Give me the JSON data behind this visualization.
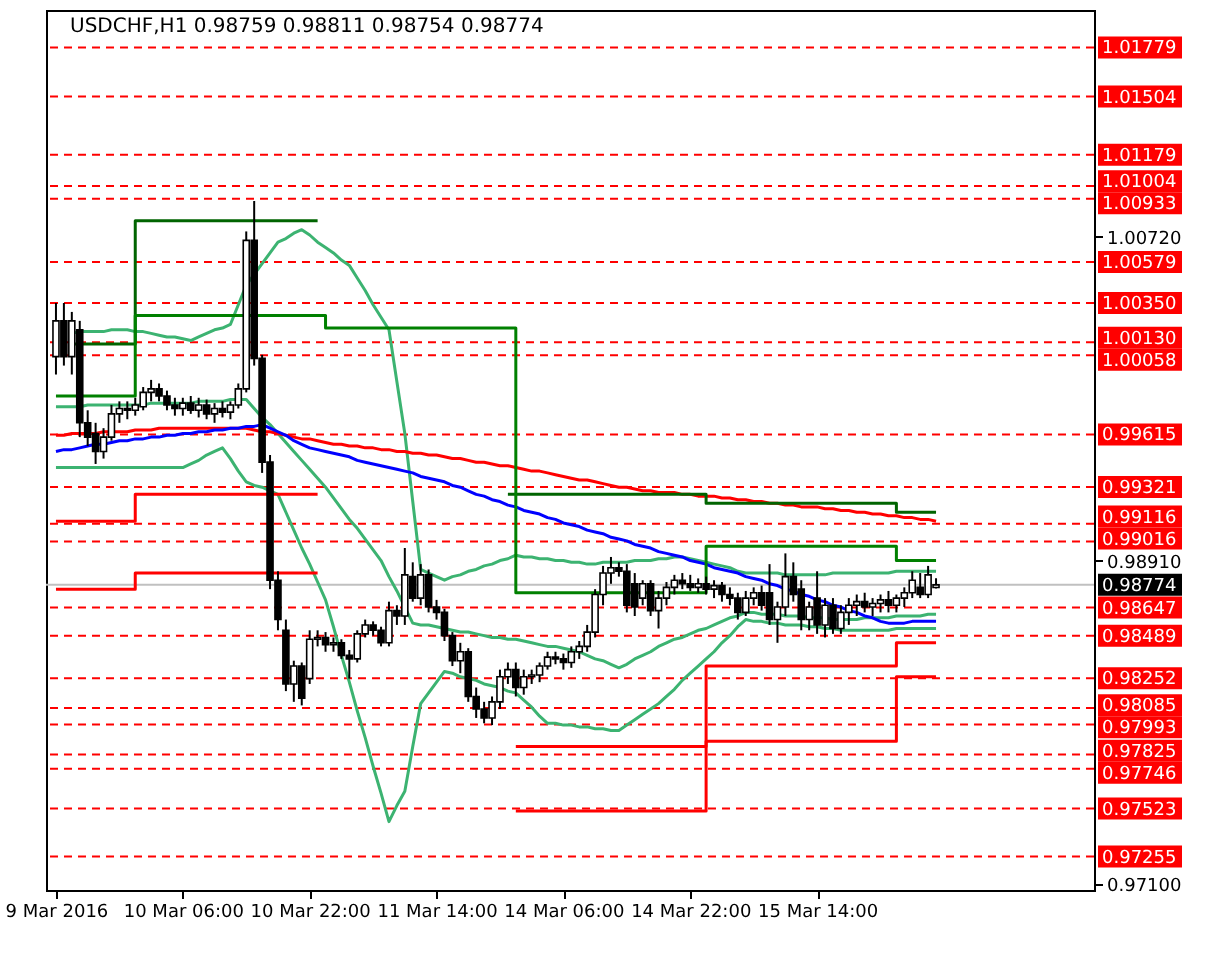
{
  "chart_data": {
    "type": "candlestick",
    "title": "USDCHF,H1  0.98759 0.98811 0.98754 0.98774",
    "categories": [
      "9 Mar 2016",
      null,
      null,
      null,
      null,
      null,
      null,
      null,
      null,
      null,
      null,
      null,
      null,
      null,
      null,
      null,
      "10 Mar 06:00",
      null,
      null,
      null,
      null,
      null,
      null,
      null,
      null,
      null,
      null,
      null,
      null,
      null,
      null,
      null,
      "10 Mar 22:00",
      null,
      null,
      null,
      null,
      null,
      null,
      null,
      null,
      null,
      null,
      null,
      null,
      null,
      null,
      null,
      "11 Mar 14:00",
      null,
      null,
      null,
      null,
      null,
      null,
      null,
      null,
      null,
      null,
      null,
      null,
      null,
      null,
      null,
      "14 Mar 06:00",
      null,
      null,
      null,
      null,
      null,
      null,
      null,
      null,
      null,
      null,
      null,
      null,
      null,
      null,
      null,
      "14 Mar 22:00",
      null,
      null,
      null,
      null,
      null,
      null,
      null,
      null,
      null,
      null,
      null,
      null,
      null,
      null,
      null,
      "15 Mar 14:00",
      null,
      null,
      null,
      null,
      null,
      null,
      null,
      null,
      null,
      null,
      null,
      null,
      null,
      null,
      null
    ],
    "ohlc": [
      [
        1.0005,
        1.0035,
        0.9995,
        1.0025
      ],
      [
        1.0025,
        1.0035,
        1.0,
        1.0005
      ],
      [
        1.0005,
        1.003,
        0.9995,
        1.0025
      ],
      [
        1.002,
        1.0025,
        0.996,
        0.9968
      ],
      [
        0.9968,
        0.9975,
        0.9955,
        0.996
      ],
      [
        0.9962,
        0.9968,
        0.9945,
        0.9952
      ],
      [
        0.9952,
        0.9965,
        0.9948,
        0.996
      ],
      [
        0.996,
        0.9978,
        0.9958,
        0.9973
      ],
      [
        0.9973,
        0.998,
        0.9968,
        0.9976
      ],
      [
        0.9976,
        0.998,
        0.997,
        0.9975
      ],
      [
        0.9975,
        0.9982,
        0.9972,
        0.9978
      ],
      [
        0.9977,
        0.9988,
        0.9975,
        0.9985
      ],
      [
        0.9985,
        0.9992,
        0.998,
        0.9987
      ],
      [
        0.9987,
        0.999,
        0.998,
        0.9983
      ],
      [
        0.9983,
        0.9986,
        0.9975,
        0.9978
      ],
      [
        0.9978,
        0.9982,
        0.9972,
        0.9976
      ],
      [
        0.9976,
        0.9982,
        0.9972,
        0.9979
      ],
      [
        0.9979,
        0.9983,
        0.9973,
        0.9975
      ],
      [
        0.9975,
        0.9982,
        0.9971,
        0.9978
      ],
      [
        0.9978,
        0.9981,
        0.997,
        0.9973
      ],
      [
        0.9973,
        0.9979,
        0.9968,
        0.9976
      ],
      [
        0.9976,
        0.998,
        0.9971,
        0.9974
      ],
      [
        0.9974,
        0.998,
        0.997,
        0.9978
      ],
      [
        0.9978,
        0.999,
        0.9976,
        0.9987
      ],
      [
        0.9987,
        1.0075,
        0.9985,
        1.007
      ],
      [
        1.007,
        1.0092,
        1.0,
        1.0004
      ],
      [
        1.0004,
        1.0006,
        0.994,
        0.9946
      ],
      [
        0.9946,
        0.995,
        0.9875,
        0.988
      ],
      [
        0.988,
        0.9885,
        0.9852,
        0.9858
      ],
      [
        0.9852,
        0.9858,
        0.9818,
        0.9822
      ],
      [
        0.9822,
        0.9835,
        0.9812,
        0.9832
      ],
      [
        0.9832,
        0.9834,
        0.981,
        0.9814
      ],
      [
        0.9825,
        0.9852,
        0.9822,
        0.9847
      ],
      [
        0.9847,
        0.9852,
        0.9843,
        0.9848
      ],
      [
        0.9848,
        0.9851,
        0.984,
        0.9844
      ],
      [
        0.9844,
        0.9848,
        0.984,
        0.9845
      ],
      [
        0.9845,
        0.9847,
        0.9836,
        0.9838
      ],
      [
        0.9838,
        0.9841,
        0.9825,
        0.9836
      ],
      [
        0.9836,
        0.9852,
        0.9834,
        0.985
      ],
      [
        0.985,
        0.9858,
        0.9848,
        0.9855
      ],
      [
        0.9855,
        0.9857,
        0.9849,
        0.9852
      ],
      [
        0.9852,
        0.9854,
        0.9843,
        0.9845
      ],
      [
        0.9845,
        0.9868,
        0.9843,
        0.9863
      ],
      [
        0.9863,
        0.9866,
        0.9855,
        0.986
      ],
      [
        0.986,
        0.9898,
        0.9855,
        0.9883
      ],
      [
        0.9882,
        0.989,
        0.9868,
        0.987
      ],
      [
        0.987,
        0.9889,
        0.9866,
        0.9883
      ],
      [
        0.9883,
        0.9886,
        0.9862,
        0.9865
      ],
      [
        0.9865,
        0.9869,
        0.9858,
        0.9862
      ],
      [
        0.9862,
        0.9864,
        0.9846,
        0.9849
      ],
      [
        0.9849,
        0.9851,
        0.9832,
        0.9835
      ],
      [
        0.9835,
        0.9845,
        0.9828,
        0.984
      ],
      [
        0.984,
        0.9842,
        0.9812,
        0.9815
      ],
      [
        0.9815,
        0.982,
        0.9803,
        0.9808
      ],
      [
        0.9808,
        0.9812,
        0.98,
        0.9803
      ],
      [
        0.9803,
        0.9815,
        0.9799,
        0.9812
      ],
      [
        0.9812,
        0.983,
        0.9808,
        0.9826
      ],
      [
        0.9826,
        0.9834,
        0.9822,
        0.983
      ],
      [
        0.983,
        0.9834,
        0.9815,
        0.982
      ],
      [
        0.982,
        0.983,
        0.9816,
        0.9826
      ],
      [
        0.9826,
        0.983,
        0.9822,
        0.9827
      ],
      [
        0.9827,
        0.9834,
        0.9823,
        0.9832
      ],
      [
        0.9832,
        0.984,
        0.983,
        0.9837
      ],
      [
        0.9837,
        0.984,
        0.9833,
        0.9836
      ],
      [
        0.9836,
        0.9839,
        0.983,
        0.9834
      ],
      [
        0.9834,
        0.9843,
        0.9831,
        0.984
      ],
      [
        0.984,
        0.9846,
        0.9836,
        0.9843
      ],
      [
        0.9843,
        0.9855,
        0.984,
        0.9851
      ],
      [
        0.9851,
        0.9875,
        0.9848,
        0.9872
      ],
      [
        0.9872,
        0.9888,
        0.9866,
        0.9884
      ],
      [
        0.9884,
        0.9893,
        0.9878,
        0.9887
      ],
      [
        0.9887,
        0.989,
        0.9882,
        0.9885
      ],
      [
        0.9885,
        0.9889,
        0.9862,
        0.9866
      ],
      [
        0.9878,
        0.9884,
        0.986,
        0.9865
      ],
      [
        0.987,
        0.988,
        0.9866,
        0.9878
      ],
      [
        0.9878,
        0.988,
        0.986,
        0.9863
      ],
      [
        0.9863,
        0.9874,
        0.9853,
        0.987
      ],
      [
        0.987,
        0.9879,
        0.9866,
        0.9876
      ],
      [
        0.9876,
        0.9883,
        0.9872,
        0.988
      ],
      [
        0.988,
        0.9884,
        0.9875,
        0.9878
      ],
      [
        0.9878,
        0.9883,
        0.9874,
        0.9876
      ],
      [
        0.9876,
        0.9881,
        0.9873,
        0.9878
      ],
      [
        0.9878,
        0.9882,
        0.9872,
        0.9875
      ],
      [
        0.9875,
        0.988,
        0.987,
        0.9877
      ],
      [
        0.9877,
        0.9879,
        0.9868,
        0.9872
      ],
      [
        0.9872,
        0.9876,
        0.9866,
        0.987
      ],
      [
        0.987,
        0.9873,
        0.9858,
        0.9862
      ],
      [
        0.9862,
        0.9874,
        0.986,
        0.987
      ],
      [
        0.987,
        0.9876,
        0.9866,
        0.9873
      ],
      [
        0.9873,
        0.9877,
        0.9863,
        0.9866
      ],
      [
        0.9873,
        0.9889,
        0.9855,
        0.9858
      ],
      [
        0.9858,
        0.9868,
        0.9845,
        0.9865
      ],
      [
        0.9865,
        0.9895,
        0.986,
        0.9882
      ],
      [
        0.9882,
        0.989,
        0.9868,
        0.9872
      ],
      [
        0.9875,
        0.988,
        0.9852,
        0.9858
      ],
      [
        0.9858,
        0.9868,
        0.9852,
        0.9865
      ],
      [
        0.987,
        0.9885,
        0.985,
        0.9855
      ],
      [
        0.9855,
        0.987,
        0.9848,
        0.9866
      ],
      [
        0.9866,
        0.987,
        0.985,
        0.9853
      ],
      [
        0.9853,
        0.9866,
        0.985,
        0.9862
      ],
      [
        0.9862,
        0.987,
        0.9855,
        0.9866
      ],
      [
        0.9866,
        0.9872,
        0.986,
        0.9868
      ],
      [
        0.9868,
        0.9873,
        0.9862,
        0.9865
      ],
      [
        0.9865,
        0.987,
        0.986,
        0.9867
      ],
      [
        0.9867,
        0.9872,
        0.9862,
        0.9869
      ],
      [
        0.9869,
        0.9874,
        0.9862,
        0.9866
      ],
      [
        0.9866,
        0.9872,
        0.9862,
        0.987
      ],
      [
        0.987,
        0.9876,
        0.9865,
        0.9873
      ],
      [
        0.9873,
        0.9885,
        0.987,
        0.988
      ],
      [
        0.9876,
        0.9884,
        0.987,
        0.9872
      ],
      [
        0.9872,
        0.9888,
        0.987,
        0.9883
      ],
      [
        0.98759,
        0.98811,
        0.98754,
        0.98774
      ]
    ],
    "series": [
      {
        "type": "line",
        "color": "#3cb371",
        "values": [
          null,
          null,
          1.0018,
          1.0019,
          1.0019,
          1.0019,
          1.0019,
          1.002,
          1.002,
          1.002,
          1.0019,
          1.0019,
          1.0018,
          1.0017,
          1.0016,
          1.0016,
          1.0015,
          1.0014,
          1.0016,
          1.0018,
          1.002,
          1.0021,
          1.0023,
          1.0034,
          1.0045,
          1.0051,
          1.0057,
          1.0063,
          1.0069,
          1.0071,
          1.0074,
          1.0076,
          1.0073,
          1.0069,
          1.0066,
          1.0063,
          1.0059,
          1.0056,
          1.0049,
          1.0042,
          1.0034,
          1.0027,
          1.002,
          0.9991,
          0.9962,
          0.9924,
          0.9886,
          0.9884,
          0.9882,
          0.988,
          0.9882,
          0.9883,
          0.9885,
          0.9886,
          0.9888,
          0.9889,
          0.9891,
          0.9892,
          0.9894,
          0.9893,
          0.9893,
          0.9892,
          0.9892,
          0.9891,
          0.9891,
          0.989,
          0.989,
          0.9889,
          0.9889,
          0.989,
          0.989,
          0.989,
          0.989,
          0.9891,
          0.9891,
          0.9891,
          0.9892,
          0.9892,
          0.9893,
          0.9893,
          0.9892,
          0.9891,
          0.989,
          0.9889,
          0.9888,
          0.9887,
          0.9885,
          0.9884,
          0.9884,
          0.9884,
          0.9884,
          0.9884,
          0.9883,
          0.9883,
          0.9883,
          0.9883,
          0.9883,
          0.9883,
          0.9884,
          0.9884,
          0.9884,
          0.9884,
          0.9884,
          0.9884,
          0.9884,
          0.9884,
          0.9885,
          0.9885,
          0.9885,
          0.9885,
          0.9885,
          0.9885
        ]
      },
      {
        "type": "line",
        "color": "#3cb371",
        "values": [
          0.9977,
          0.9977,
          0.9977,
          0.9977,
          0.9978,
          0.9978,
          0.9978,
          0.9978,
          0.9978,
          0.9978,
          0.9978,
          0.9978,
          0.9979,
          0.9979,
          0.9979,
          0.9979,
          0.9979,
          0.9979,
          0.998,
          0.998,
          0.998,
          0.998,
          0.9981,
          0.9981,
          0.9981,
          0.9976,
          0.9971,
          0.9967,
          0.9962,
          0.9957,
          0.9952,
          0.9947,
          0.9942,
          0.9937,
          0.9932,
          0.9926,
          0.992,
          0.9914,
          0.9909,
          0.9903,
          0.9897,
          0.9891,
          0.9882,
          0.9874,
          0.9865,
          0.9856,
          0.9855,
          0.9855,
          0.9854,
          0.9853,
          0.9852,
          0.9851,
          0.9851,
          0.985,
          0.9849,
          0.9848,
          0.9848,
          0.9847,
          0.9847,
          0.9846,
          0.9845,
          0.9844,
          0.9843,
          0.9843,
          0.9842,
          0.9841,
          0.984,
          0.9838,
          0.9836,
          0.9835,
          0.9833,
          0.9831,
          0.9833,
          0.9836,
          0.9838,
          0.984,
          0.9843,
          0.9845,
          0.9847,
          0.9848,
          0.985,
          0.9852,
          0.9853,
          0.9855,
          0.9857,
          0.9859,
          0.986,
          0.9862,
          0.9862,
          0.9861,
          0.9861,
          0.9861,
          0.986,
          0.986,
          0.986,
          0.9859,
          0.9859,
          0.9859,
          0.9858,
          0.9858,
          0.9858,
          0.9858,
          0.9859,
          0.9859,
          0.9859,
          0.9859,
          0.986,
          0.986,
          0.986,
          0.986,
          0.9861,
          0.9861
        ]
      },
      {
        "type": "line",
        "color": "#3cb371",
        "values": [
          0.9943,
          0.9943,
          0.9943,
          0.9943,
          0.9943,
          0.9943,
          0.9943,
          0.9943,
          0.9943,
          0.9943,
          0.9943,
          0.9943,
          0.9943,
          0.9943,
          0.9943,
          0.9943,
          0.9943,
          0.9945,
          0.9947,
          0.995,
          0.9952,
          0.9954,
          0.9948,
          0.9941,
          0.9935,
          0.9933,
          0.9932,
          0.993,
          0.9928,
          0.9918,
          0.9908,
          0.9898,
          0.9889,
          0.9879,
          0.9869,
          0.9854,
          0.9838,
          0.9823,
          0.9807,
          0.9792,
          0.9776,
          0.9761,
          0.9745,
          0.9754,
          0.9762,
          0.9787,
          0.9811,
          0.9817,
          0.9823,
          0.9829,
          0.9828,
          0.9826,
          0.9825,
          0.9824,
          0.9822,
          0.9821,
          0.982,
          0.9818,
          0.9817,
          0.9813,
          0.9809,
          0.9804,
          0.98,
          0.98,
          0.9799,
          0.9799,
          0.9798,
          0.9798,
          0.9797,
          0.9797,
          0.9796,
          0.9796,
          0.9799,
          0.9802,
          0.9805,
          0.9808,
          0.9811,
          0.9815,
          0.9819,
          0.9824,
          0.9828,
          0.9832,
          0.9836,
          0.984,
          0.9845,
          0.9849,
          0.9854,
          0.9858,
          0.9857,
          0.9857,
          0.9856,
          0.9856,
          0.9855,
          0.9855,
          0.9855,
          0.9854,
          0.9854,
          0.9853,
          0.9853,
          0.9852,
          0.9852,
          0.9852,
          0.9852,
          0.9852,
          0.9852,
          0.9852,
          0.9853,
          0.9853,
          0.9853,
          0.9853,
          0.9853,
          0.9853
        ]
      },
      {
        "type": "line",
        "color": "#ff0000",
        "values": [
          0.9961,
          0.9961,
          0.9962,
          0.9962,
          0.9962,
          0.9962,
          0.9963,
          0.9963,
          0.9963,
          0.9963,
          0.9964,
          0.9964,
          0.9964,
          0.9965,
          0.9965,
          0.9965,
          0.9965,
          0.9965,
          0.9965,
          0.9965,
          0.9965,
          0.9965,
          0.9965,
          0.9965,
          0.9965,
          0.9964,
          0.9963,
          0.9963,
          0.9962,
          0.9961,
          0.996,
          0.9959,
          0.9959,
          0.9958,
          0.9957,
          0.9956,
          0.9956,
          0.9955,
          0.9955,
          0.9954,
          0.9954,
          0.9953,
          0.9953,
          0.9952,
          0.9952,
          0.9951,
          0.9951,
          0.995,
          0.995,
          0.9949,
          0.9948,
          0.9948,
          0.9947,
          0.9946,
          0.9946,
          0.9945,
          0.9944,
          0.9944,
          0.9943,
          0.9942,
          0.9941,
          0.9941,
          0.994,
          0.9939,
          0.9938,
          0.9937,
          0.9936,
          0.9936,
          0.9935,
          0.9934,
          0.9933,
          0.9932,
          0.9932,
          0.9931,
          0.993,
          0.993,
          0.9929,
          0.9929,
          0.9929,
          0.9928,
          0.9928,
          0.9927,
          0.9927,
          0.9927,
          0.9926,
          0.9926,
          0.9925,
          0.9925,
          0.9924,
          0.9924,
          0.9923,
          0.9923,
          0.9922,
          0.9922,
          0.9921,
          0.9921,
          0.9921,
          0.992,
          0.992,
          0.9919,
          0.9919,
          0.9918,
          0.9918,
          0.9917,
          0.9917,
          0.9916,
          0.9916,
          0.9915,
          0.9915,
          0.9914,
          0.9914,
          0.9913
        ]
      },
      {
        "type": "line",
        "color": "#0000ff",
        "values": [
          0.9952,
          0.9953,
          0.9953,
          0.9954,
          0.9955,
          0.9956,
          0.9956,
          0.9957,
          0.9958,
          0.9958,
          0.9959,
          0.9959,
          0.996,
          0.996,
          0.9961,
          0.9961,
          0.9962,
          0.9962,
          0.9963,
          0.9963,
          0.9964,
          0.9964,
          0.9965,
          0.9965,
          0.9966,
          0.9966,
          0.9967,
          0.9965,
          0.9963,
          0.9961,
          0.9958,
          0.9956,
          0.9954,
          0.9953,
          0.9952,
          0.9951,
          0.995,
          0.9949,
          0.9947,
          0.9946,
          0.9945,
          0.9944,
          0.9943,
          0.9942,
          0.9941,
          0.994,
          0.9938,
          0.9937,
          0.9936,
          0.9935,
          0.9933,
          0.9932,
          0.993,
          0.9928,
          0.9927,
          0.9925,
          0.9924,
          0.9922,
          0.9921,
          0.9919,
          0.9918,
          0.9917,
          0.9915,
          0.9914,
          0.9912,
          0.9911,
          0.991,
          0.9908,
          0.9907,
          0.9906,
          0.9904,
          0.9903,
          0.9902,
          0.99,
          0.9899,
          0.9898,
          0.9896,
          0.9895,
          0.9894,
          0.9893,
          0.9891,
          0.989,
          0.9889,
          0.9887,
          0.9886,
          0.9885,
          0.9884,
          0.9882,
          0.9881,
          0.988,
          0.9878,
          0.9877,
          0.9875,
          0.9874,
          0.9872,
          0.9871,
          0.9869,
          0.9868,
          0.9866,
          0.9865,
          0.9863,
          0.9862,
          0.986,
          0.9859,
          0.9857,
          0.9856,
          0.9856,
          0.9856,
          0.9857,
          0.9857,
          0.9857,
          0.9857
        ]
      },
      {
        "type": "step",
        "color": "#006400",
        "values": [
          null,
          null,
          1.0012,
          1.0012,
          1.0012,
          1.0012,
          1.0012,
          1.0012,
          1.0012,
          1.0012,
          1.0081,
          1.0081,
          1.0081,
          1.0081,
          1.0081,
          1.0081,
          1.0081,
          1.0081,
          1.0081,
          1.0081,
          1.0081,
          1.0081,
          1.0081,
          1.0081,
          1.0081,
          1.0081,
          1.0081,
          1.0081,
          1.0081,
          1.0081,
          1.0081,
          1.0081,
          1.0081,
          1.0081,
          null,
          null,
          null,
          null,
          null,
          null,
          null,
          null,
          null,
          null,
          null,
          null,
          null,
          null,
          null,
          null,
          null,
          null,
          null,
          null,
          null,
          null,
          null,
          0.9928,
          0.9928,
          0.9928,
          0.9928,
          0.9928,
          0.9928,
          0.9928,
          0.9928,
          0.9928,
          0.9928,
          0.9928,
          0.9928,
          0.9928,
          0.9928,
          0.9928,
          0.9928,
          0.9928,
          0.9928,
          0.9928,
          0.9928,
          0.9928,
          0.9928,
          0.9928,
          0.9928,
          0.9928,
          0.9923,
          0.9923,
          0.9923,
          0.9923,
          0.9923,
          0.9923,
          0.9923,
          0.9923,
          0.9923,
          0.9923,
          0.9923,
          0.9923,
          0.9923,
          0.9923,
          0.9923,
          0.9923,
          0.9923,
          0.9923,
          0.9923,
          0.9923,
          0.9923,
          0.9923,
          0.9923,
          0.9923,
          0.9918,
          0.9918,
          0.9918,
          0.9918,
          0.9918,
          0.9918
        ]
      },
      {
        "type": "step",
        "color": "#008000",
        "values": [
          0.9983,
          0.9983,
          0.9983,
          0.9983,
          0.9983,
          0.9983,
          0.9983,
          0.9983,
          0.9983,
          0.9983,
          1.0028,
          1.0028,
          1.0028,
          1.0028,
          1.0028,
          1.0028,
          1.0028,
          1.0028,
          1.0028,
          1.0028,
          1.0028,
          1.0028,
          1.0028,
          1.0028,
          1.0028,
          1.0028,
          1.0028,
          1.0028,
          1.0028,
          1.0028,
          1.0028,
          1.0028,
          1.0028,
          1.0028,
          1.0021,
          1.0021,
          1.0021,
          1.0021,
          1.0021,
          1.0021,
          1.0021,
          1.0021,
          1.0021,
          1.0021,
          1.0021,
          1.0021,
          1.0021,
          1.0021,
          1.0021,
          1.0021,
          1.0021,
          1.0021,
          1.0021,
          1.0021,
          1.0021,
          1.0021,
          1.0021,
          1.0021,
          0.9873,
          0.9873,
          0.9873,
          0.9873,
          0.9873,
          0.9873,
          0.9873,
          0.9873,
          0.9873,
          0.9873,
          0.9873,
          0.9873,
          0.9873,
          0.9873,
          0.9873,
          0.9873,
          0.9873,
          0.9873,
          0.9873,
          0.9873,
          0.9873,
          0.9873,
          0.9873,
          0.9873,
          0.9899,
          0.9899,
          0.9899,
          0.9899,
          0.9899,
          0.9899,
          0.9899,
          0.9899,
          0.9899,
          0.9899,
          0.9899,
          0.9899,
          0.9899,
          0.9899,
          0.9899,
          0.9899,
          0.9899,
          0.9899,
          0.9899,
          0.9899,
          0.9899,
          0.9899,
          0.9899,
          0.9899,
          0.9891,
          0.9891,
          0.9891,
          0.9891,
          0.9891,
          0.9891
        ]
      },
      {
        "type": "step",
        "color": "#ff0000",
        "values": [
          0.9875,
          0.9875,
          0.9875,
          0.9875,
          0.9875,
          0.9875,
          0.9875,
          0.9875,
          0.9875,
          0.9875,
          0.9884,
          0.9884,
          0.9884,
          0.9884,
          0.9884,
          0.9884,
          0.9884,
          0.9884,
          0.9884,
          0.9884,
          0.9884,
          0.9884,
          0.9884,
          0.9884,
          0.9884,
          0.9884,
          0.9884,
          0.9884,
          0.9884,
          0.9884,
          0.9884,
          0.9884,
          0.9884,
          0.9884,
          null,
          null,
          null,
          null,
          null,
          null,
          null,
          null,
          null,
          null,
          null,
          null,
          null,
          null,
          null,
          null,
          null,
          null,
          null,
          null,
          null,
          null,
          null,
          null,
          0.9751,
          0.9751,
          0.9751,
          0.9751,
          0.9751,
          0.9751,
          0.9751,
          0.9751,
          0.9751,
          0.9751,
          0.9751,
          0.9751,
          0.9751,
          0.9751,
          0.9751,
          0.9751,
          0.9751,
          0.9751,
          0.9751,
          0.9751,
          0.9751,
          0.9751,
          0.9751,
          0.9751,
          0.979,
          0.979,
          0.979,
          0.979,
          0.979,
          0.979,
          0.979,
          0.979,
          0.979,
          0.979,
          0.979,
          0.979,
          0.979,
          0.979,
          0.979,
          0.979,
          0.979,
          0.979,
          0.979,
          0.979,
          0.979,
          0.979,
          0.979,
          0.979,
          0.9826,
          0.9826,
          0.9826,
          0.9826,
          0.9826,
          0.9826
        ]
      },
      {
        "type": "step",
        "color": "#ff0000",
        "values": [
          0.9913,
          0.9913,
          0.9913,
          0.9913,
          0.9913,
          0.9913,
          0.9913,
          0.9913,
          0.9913,
          0.9913,
          0.9928,
          0.9928,
          0.9928,
          0.9928,
          0.9928,
          0.9928,
          0.9928,
          0.9928,
          0.9928,
          0.9928,
          0.9928,
          0.9928,
          0.9928,
          0.9928,
          0.9928,
          0.9928,
          0.9928,
          0.9928,
          0.9928,
          0.9928,
          0.9928,
          0.9928,
          0.9928,
          0.9928,
          null,
          null,
          null,
          null,
          null,
          null,
          null,
          null,
          null,
          null,
          null,
          null,
          null,
          null,
          null,
          null,
          null,
          null,
          null,
          null,
          null,
          null,
          null,
          null,
          0.9787,
          0.9787,
          0.9787,
          0.9787,
          0.9787,
          0.9787,
          0.9787,
          0.9787,
          0.9787,
          0.9787,
          0.9787,
          0.9787,
          0.9787,
          0.9787,
          0.9787,
          0.9787,
          0.9787,
          0.9787,
          0.9787,
          0.9787,
          0.9787,
          0.9787,
          0.9787,
          0.9787,
          0.9832,
          0.9832,
          0.9832,
          0.9832,
          0.9832,
          0.9832,
          0.9832,
          0.9832,
          0.9832,
          0.9832,
          0.9832,
          0.9832,
          0.9832,
          0.9832,
          0.9832,
          0.9832,
          0.9832,
          0.9832,
          0.9832,
          0.9832,
          0.9832,
          0.9832,
          0.9832,
          0.9832,
          0.9845,
          0.9845,
          0.9845,
          0.9845,
          0.9845,
          0.9845
        ]
      }
    ],
    "ylim": [
      0.97068,
      1.01988
    ],
    "yticks": [
      {
        "value": 1.0072,
        "label": "1.00720"
      },
      {
        "value": 0.9891,
        "label": "0.98910"
      },
      {
        "value": 0.971,
        "label": "0.97100"
      }
    ],
    "ref_lines": [
      {
        "axis": "y",
        "value": 1.01779,
        "label": "1.01779",
        "color": "#ff0000",
        "line_style": "dashed"
      },
      {
        "axis": "y",
        "value": 1.01504,
        "label": "1.01504",
        "color": "#ff0000",
        "line_style": "dashed"
      },
      {
        "axis": "y",
        "value": 1.01179,
        "label": "1.01179",
        "color": "#ff0000",
        "line_style": "dashed"
      },
      {
        "axis": "y",
        "value": 1.01004,
        "label": "1.01004",
        "color": "#ff0000",
        "line_style": "dashed"
      },
      {
        "axis": "y",
        "value": 1.00933,
        "label": "1.00933",
        "color": "#ff0000",
        "line_style": "dashed"
      },
      {
        "axis": "y",
        "value": 1.00579,
        "label": "1.00579",
        "color": "#ff0000",
        "line_style": "dashed"
      },
      {
        "axis": "y",
        "value": 1.0035,
        "label": "1.00350",
        "color": "#ff0000",
        "line_style": "dashed"
      },
      {
        "axis": "y",
        "value": 1.0013,
        "label": "1.00130",
        "color": "#ff0000",
        "line_style": "dashed"
      },
      {
        "axis": "y",
        "value": 1.00058,
        "label": "1.00058",
        "color": "#ff0000",
        "line_style": "dashed"
      },
      {
        "axis": "y",
        "value": 0.99615,
        "label": "0.99615",
        "color": "#ff0000",
        "line_style": "dashed"
      },
      {
        "axis": "y",
        "value": 0.99321,
        "label": "0.99321",
        "color": "#ff0000",
        "line_style": "dashed"
      },
      {
        "axis": "y",
        "value": 0.99116,
        "label": "0.99116",
        "color": "#ff0000",
        "line_style": "dashed"
      },
      {
        "axis": "y",
        "value": 0.99016,
        "label": "0.99016",
        "color": "#ff0000",
        "line_style": "dashed"
      },
      {
        "axis": "y",
        "value": 0.98774,
        "label": "0.98774",
        "color": "#c0c0c0",
        "line_style": "solid"
      },
      {
        "axis": "y",
        "value": 0.98647,
        "label": "0.98647",
        "color": "#ff0000",
        "line_style": "dashed"
      },
      {
        "axis": "y",
        "value": 0.98489,
        "label": "0.98489",
        "color": "#ff0000",
        "line_style": "dashed"
      },
      {
        "axis": "y",
        "value": 0.98252,
        "label": "0.98252",
        "color": "#ff0000",
        "line_style": "dashed"
      },
      {
        "axis": "y",
        "value": 0.98085,
        "label": "0.98085",
        "color": "#ff0000",
        "line_style": "dashed"
      },
      {
        "axis": "y",
        "value": 0.97993,
        "label": "0.97993",
        "color": "#ff0000",
        "line_style": "dashed"
      },
      {
        "axis": "y",
        "value": 0.97825,
        "label": "0.97825",
        "color": "#ff0000",
        "line_style": "dashed"
      },
      {
        "axis": "y",
        "value": 0.97746,
        "label": "0.97746",
        "color": "#ff0000",
        "line_style": "dashed"
      },
      {
        "axis": "y",
        "value": 0.97523,
        "label": "0.97523",
        "color": "#ff0000",
        "line_style": "dashed"
      },
      {
        "axis": "y",
        "value": 0.97255,
        "label": "0.97255",
        "color": "#ff0000",
        "line_style": "dashed"
      }
    ]
  }
}
